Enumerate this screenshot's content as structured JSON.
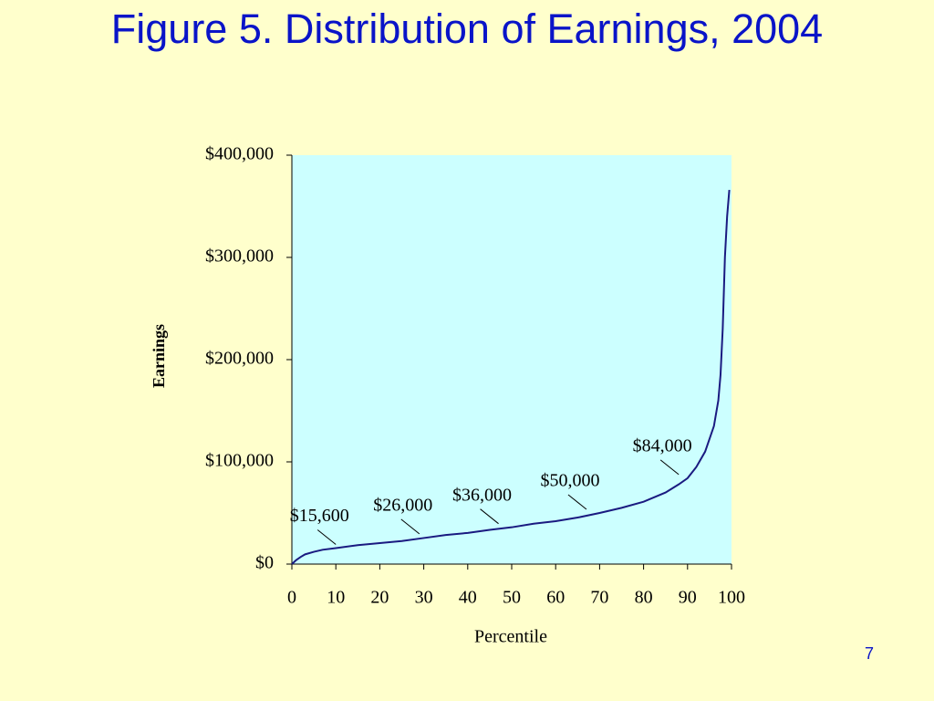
{
  "chart_data": {
    "type": "line",
    "title": "Figure 5. Distribution of Earnings, 2004",
    "x_label": "Percentile",
    "y_label": "Earnings",
    "page_number": "7",
    "x": [
      0,
      1,
      2,
      3,
      5,
      7,
      10,
      15,
      20,
      25,
      30,
      35,
      40,
      45,
      50,
      55,
      60,
      65,
      70,
      75,
      80,
      85,
      88,
      90,
      92,
      94,
      96,
      97,
      97.5,
      98,
      98.5,
      99,
      99.5
    ],
    "series": [
      {
        "name": "Earnings",
        "color": "#1a1a80",
        "values": [
          0,
          4000,
          7000,
          9500,
          12000,
          14000,
          15600,
          18500,
          20500,
          22500,
          25500,
          28500,
          30500,
          33500,
          36000,
          39500,
          42000,
          45500,
          50000,
          55000,
          61000,
          70000,
          78000,
          84000,
          95000,
          110000,
          135000,
          160000,
          185000,
          230000,
          300000,
          340000,
          366000
        ]
      }
    ],
    "annotations": [
      {
        "x": 10,
        "y": 15600,
        "label": "$15,600"
      },
      {
        "x": 29,
        "y": 26000,
        "label": "$26,000"
      },
      {
        "x": 47,
        "y": 36000,
        "label": "$36,000"
      },
      {
        "x": 67,
        "y": 50000,
        "label": "$50,000"
      },
      {
        "x": 88,
        "y": 84000,
        "label": "$84,000"
      }
    ],
    "xlim": [
      0,
      100
    ],
    "xticks": [
      0,
      10,
      20,
      30,
      40,
      50,
      60,
      70,
      80,
      90,
      100
    ],
    "ylim": [
      0,
      400000
    ],
    "yticks": [
      {
        "value": 0,
        "label": "$0"
      },
      {
        "value": 100000,
        "label": "$100,000"
      },
      {
        "value": 200000,
        "label": "$200,000"
      },
      {
        "value": 300000,
        "label": "$300,000"
      },
      {
        "value": 400000,
        "label": "$400,000"
      }
    ],
    "plot_background": "#ccffff",
    "background": "#ffffcc",
    "title_color": "#0a14c8"
  }
}
